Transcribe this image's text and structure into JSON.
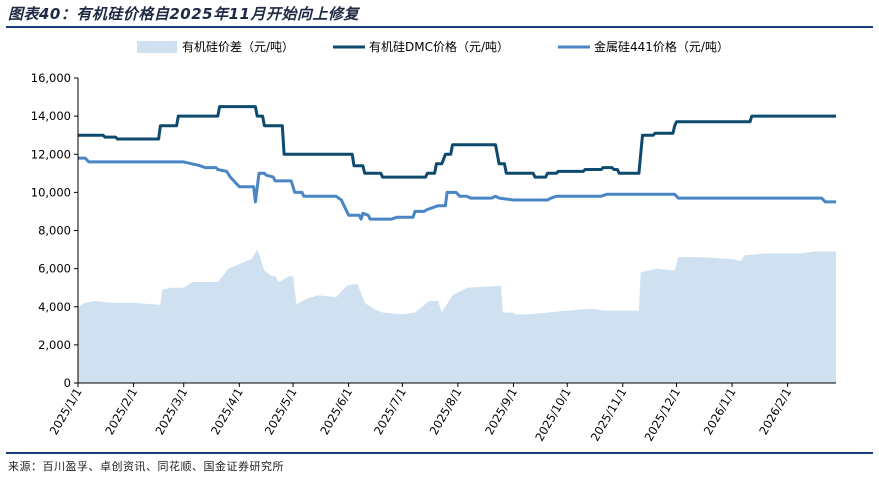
{
  "figure_title": "图表40：有机硅价格自2025年11月开始向上修复",
  "source": "来源：百川盈孚、卓创资讯、同花顺、国金证券研究所",
  "colors": {
    "title": "#1f2a44",
    "rule": "#1e3c78",
    "area": "#cfe0f1",
    "dmc": "#0d4a6e",
    "metal": "#4a86c5",
    "axis": "#000000"
  },
  "chart_data": {
    "type": "line",
    "legend_position": "top",
    "grid": false,
    "ylim": [
      0,
      16000
    ],
    "yticks": [
      0,
      2000,
      4000,
      6000,
      8000,
      10000,
      12000,
      14000,
      16000
    ],
    "ytick_labels": [
      "0",
      "2,000",
      "4,000",
      "6,000",
      "8,000",
      "10,000",
      "12,000",
      "14,000",
      "16,000"
    ],
    "x_range": [
      "2025-01-01",
      "2026-02-28"
    ],
    "xticks": [
      "2025-01-01",
      "2025-02-01",
      "2025-03-01",
      "2025-04-01",
      "2025-05-01",
      "2025-06-01",
      "2025-07-01",
      "2025-08-01",
      "2025-09-01",
      "2025-10-01",
      "2025-11-01",
      "2025-12-01",
      "2026-01-01",
      "2026-02-01"
    ],
    "xtick_labels": [
      "2025/1/1",
      "2025/2/1",
      "2025/3/1",
      "2025/4/1",
      "2025/5/1",
      "2025/6/1",
      "2025/7/1",
      "2025/8/1",
      "2025/9/1",
      "2025/10/1",
      "2025/11/1",
      "2025/12/1",
      "2026/1/1",
      "2026/2/1"
    ],
    "series": [
      {
        "name": "有机硅价差（元/吨）",
        "kind": "area",
        "color": "#cfe0f1",
        "points": [
          [
            "2025-01-01",
            4000
          ],
          [
            "2025-01-05",
            4200
          ],
          [
            "2025-01-10",
            4300
          ],
          [
            "2025-01-20",
            4200
          ],
          [
            "2025-02-01",
            4200
          ],
          [
            "2025-02-16",
            4100
          ],
          [
            "2025-02-17",
            4900
          ],
          [
            "2025-02-22",
            5000
          ],
          [
            "2025-03-01",
            5000
          ],
          [
            "2025-03-06",
            5300
          ],
          [
            "2025-03-20",
            5300
          ],
          [
            "2025-03-26",
            6000
          ],
          [
            "2025-04-05",
            6400
          ],
          [
            "2025-04-08",
            6500
          ],
          [
            "2025-04-11",
            7000
          ],
          [
            "2025-04-13",
            6500
          ],
          [
            "2025-04-15",
            5900
          ],
          [
            "2025-04-19",
            5600
          ],
          [
            "2025-04-21",
            5600
          ],
          [
            "2025-04-23",
            5300
          ],
          [
            "2025-04-29",
            5600
          ],
          [
            "2025-05-01",
            5600
          ],
          [
            "2025-05-03",
            4100
          ],
          [
            "2025-05-08",
            4400
          ],
          [
            "2025-05-15",
            4600
          ],
          [
            "2025-05-25",
            4500
          ],
          [
            "2025-05-31",
            5100
          ],
          [
            "2025-06-06",
            5200
          ],
          [
            "2025-06-10",
            4200
          ],
          [
            "2025-06-15",
            3900
          ],
          [
            "2025-06-20",
            3700
          ],
          [
            "2025-07-01",
            3600
          ],
          [
            "2025-07-08",
            3700
          ],
          [
            "2025-07-16",
            4300
          ],
          [
            "2025-07-21",
            4300
          ],
          [
            "2025-07-23",
            3700
          ],
          [
            "2025-07-29",
            4600
          ],
          [
            "2025-08-06",
            5000
          ],
          [
            "2025-08-25",
            5100
          ],
          [
            "2025-08-26",
            3700
          ],
          [
            "2025-09-01",
            3700
          ],
          [
            "2025-09-02",
            3600
          ],
          [
            "2025-09-10",
            3600
          ],
          [
            "2025-09-20",
            3700
          ],
          [
            "2025-10-01",
            3800
          ],
          [
            "2025-10-15",
            3900
          ],
          [
            "2025-10-22",
            3800
          ],
          [
            "2025-10-31",
            3800
          ],
          [
            "2025-11-05",
            3800
          ],
          [
            "2025-11-10",
            3800
          ],
          [
            "2025-11-11",
            5800
          ],
          [
            "2025-11-20",
            6000
          ],
          [
            "2025-11-30",
            5900
          ],
          [
            "2025-12-02",
            6600
          ],
          [
            "2025-12-15",
            6600
          ],
          [
            "2026-01-01",
            6500
          ],
          [
            "2026-01-06",
            6400
          ],
          [
            "2026-01-08",
            6700
          ],
          [
            "2026-01-20",
            6800
          ],
          [
            "2026-02-10",
            6800
          ],
          [
            "2026-02-15",
            6900
          ],
          [
            "2026-02-28",
            6900
          ]
        ]
      },
      {
        "name": "有机硅DMC价格（元/吨）",
        "kind": "line",
        "color": "#0d4a6e",
        "points": [
          [
            "2025-01-01",
            13000
          ],
          [
            "2025-01-15",
            13000
          ],
          [
            "2025-01-16",
            12900
          ],
          [
            "2025-01-22",
            12900
          ],
          [
            "2025-01-23",
            12800
          ],
          [
            "2025-02-15",
            12800
          ],
          [
            "2025-02-16",
            13500
          ],
          [
            "2025-02-25",
            13500
          ],
          [
            "2025-02-26",
            14000
          ],
          [
            "2025-03-20",
            14000
          ],
          [
            "2025-03-21",
            14500
          ],
          [
            "2025-04-10",
            14500
          ],
          [
            "2025-04-11",
            14000
          ],
          [
            "2025-04-14",
            14000
          ],
          [
            "2025-04-15",
            13500
          ],
          [
            "2025-04-25",
            13500
          ],
          [
            "2025-04-26",
            12000
          ],
          [
            "2025-06-03",
            12000
          ],
          [
            "2025-06-04",
            11400
          ],
          [
            "2025-06-09",
            11400
          ],
          [
            "2025-06-10",
            11000
          ],
          [
            "2025-06-19",
            11000
          ],
          [
            "2025-06-20",
            10800
          ],
          [
            "2025-07-14",
            10800
          ],
          [
            "2025-07-15",
            11000
          ],
          [
            "2025-07-19",
            11000
          ],
          [
            "2025-07-20",
            11500
          ],
          [
            "2025-07-23",
            11500
          ],
          [
            "2025-07-25",
            12000
          ],
          [
            "2025-07-28",
            12000
          ],
          [
            "2025-07-29",
            12500
          ],
          [
            "2025-08-22",
            12500
          ],
          [
            "2025-08-24",
            11500
          ],
          [
            "2025-08-27",
            11500
          ],
          [
            "2025-08-28",
            11000
          ],
          [
            "2025-09-12",
            11000
          ],
          [
            "2025-09-13",
            10800
          ],
          [
            "2025-09-19",
            10800
          ],
          [
            "2025-09-20",
            11000
          ],
          [
            "2025-09-25",
            11000
          ],
          [
            "2025-09-26",
            11100
          ],
          [
            "2025-10-10",
            11100
          ],
          [
            "2025-10-11",
            11200
          ],
          [
            "2025-10-20",
            11200
          ],
          [
            "2025-10-21",
            11300
          ],
          [
            "2025-10-26",
            11300
          ],
          [
            "2025-10-27",
            11200
          ],
          [
            "2025-10-29",
            11200
          ],
          [
            "2025-10-30",
            11000
          ],
          [
            "2025-11-10",
            11000
          ],
          [
            "2025-11-12",
            13000
          ],
          [
            "2025-11-18",
            13000
          ],
          [
            "2025-11-19",
            13100
          ],
          [
            "2025-11-29",
            13100
          ],
          [
            "2025-11-30",
            13500
          ],
          [
            "2025-12-01",
            13700
          ],
          [
            "2026-01-11",
            13700
          ],
          [
            "2026-01-12",
            14000
          ],
          [
            "2026-02-28",
            14000
          ]
        ]
      },
      {
        "name": "金属硅441价格（元/吨）",
        "kind": "line",
        "color": "#4a86c5",
        "points": [
          [
            "2025-01-01",
            11800
          ],
          [
            "2025-01-05",
            11800
          ],
          [
            "2025-01-07",
            11600
          ],
          [
            "2025-03-01",
            11600
          ],
          [
            "2025-03-10",
            11400
          ],
          [
            "2025-03-13",
            11300
          ],
          [
            "2025-03-19",
            11300
          ],
          [
            "2025-03-20",
            11200
          ],
          [
            "2025-03-25",
            11100
          ],
          [
            "2025-03-27",
            10800
          ],
          [
            "2025-04-01",
            10300
          ],
          [
            "2025-04-09",
            10300
          ],
          [
            "2025-04-10",
            9500
          ],
          [
            "2025-04-12",
            11000
          ],
          [
            "2025-04-15",
            11000
          ],
          [
            "2025-04-16",
            10900
          ],
          [
            "2025-04-20",
            10800
          ],
          [
            "2025-04-21",
            10600
          ],
          [
            "2025-04-30",
            10600
          ],
          [
            "2025-05-02",
            10000
          ],
          [
            "2025-05-06",
            10000
          ],
          [
            "2025-05-07",
            9800
          ],
          [
            "2025-05-25",
            9800
          ],
          [
            "2025-05-28",
            9600
          ],
          [
            "2025-05-30",
            9200
          ],
          [
            "2025-06-01",
            8800
          ],
          [
            "2025-06-07",
            8800
          ],
          [
            "2025-06-08",
            8600
          ],
          [
            "2025-06-09",
            8900
          ],
          [
            "2025-06-12",
            8800
          ],
          [
            "2025-06-13",
            8600
          ],
          [
            "2025-06-25",
            8600
          ],
          [
            "2025-06-28",
            8700
          ],
          [
            "2025-07-07",
            8700
          ],
          [
            "2025-07-08",
            9000
          ],
          [
            "2025-07-13",
            9000
          ],
          [
            "2025-07-15",
            9100
          ],
          [
            "2025-07-21",
            9300
          ],
          [
            "2025-07-25",
            9300
          ],
          [
            "2025-07-26",
            10000
          ],
          [
            "2025-07-31",
            10000
          ],
          [
            "2025-08-02",
            9800
          ],
          [
            "2025-08-06",
            9800
          ],
          [
            "2025-08-08",
            9700
          ],
          [
            "2025-08-20",
            9700
          ],
          [
            "2025-08-22",
            9800
          ],
          [
            "2025-08-24",
            9700
          ],
          [
            "2025-09-01",
            9600
          ],
          [
            "2025-09-20",
            9600
          ],
          [
            "2025-09-22",
            9700
          ],
          [
            "2025-09-25",
            9800
          ],
          [
            "2025-10-20",
            9800
          ],
          [
            "2025-10-23",
            9900
          ],
          [
            "2025-11-30",
            9900
          ],
          [
            "2025-12-02",
            9700
          ],
          [
            "2026-02-20",
            9700
          ],
          [
            "2026-02-22",
            9500
          ],
          [
            "2026-02-28",
            9500
          ]
        ]
      }
    ]
  }
}
